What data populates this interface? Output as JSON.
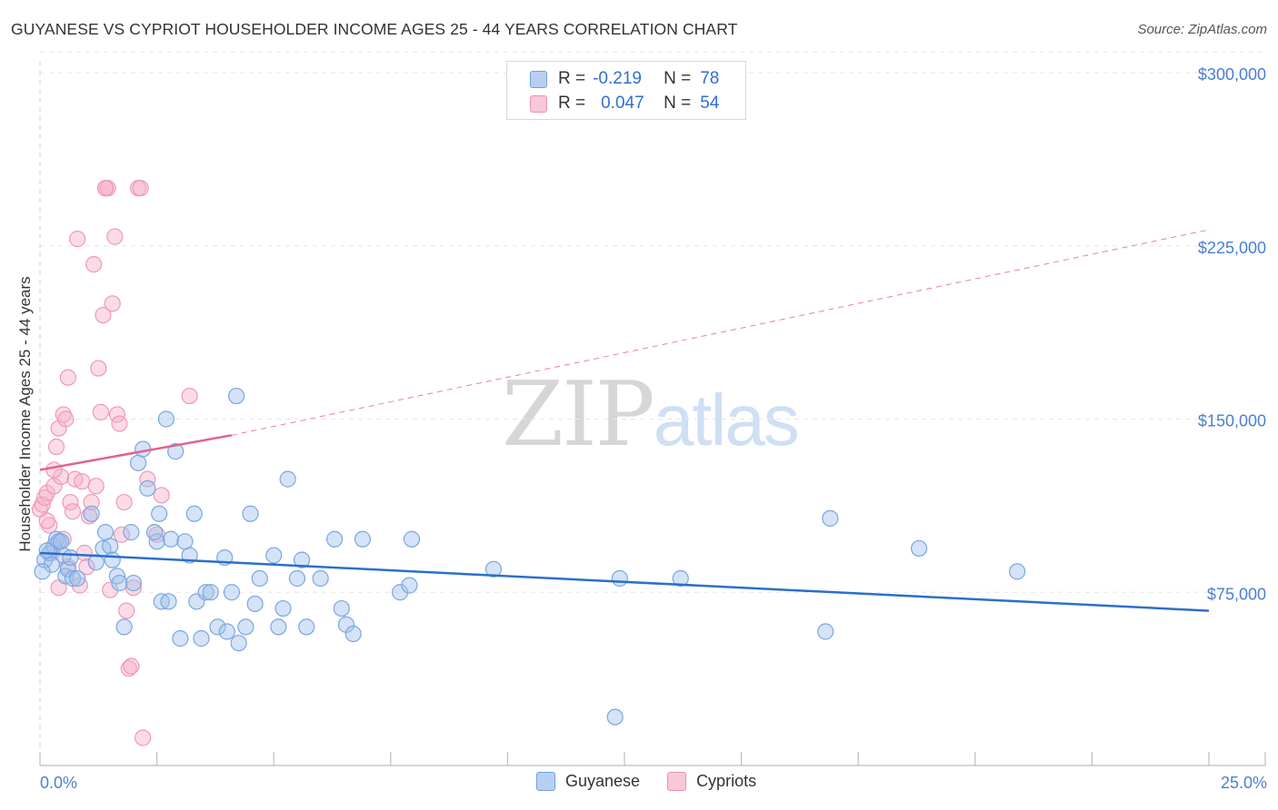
{
  "header": {
    "title": "GUYANESE VS CYPRIOT HOUSEHOLDER INCOME AGES 25 - 44 YEARS CORRELATION CHART",
    "source": "Source: ZipAtlas.com"
  },
  "watermark": {
    "zip": "ZIP",
    "atlas": "atlas"
  },
  "legend": {
    "rows": [
      {
        "r_label": "R =",
        "r_value": "-0.219",
        "n_label": "N =",
        "n_value": "78",
        "color": "#6fa0e0",
        "fill": "#b7d0f2"
      },
      {
        "r_label": "R =",
        "r_value": "0.047",
        "n_label": "N =",
        "n_value": "54",
        "color": "#ee8fb0",
        "fill": "#f8c8d8"
      }
    ]
  },
  "bottom_legend": {
    "items": [
      "Guyanese",
      "Cypriots"
    ]
  },
  "colors": {
    "blue_point_fill": "rgba(160,192,236,0.45)",
    "blue_point_stroke": "#7aa6e2",
    "pink_point_fill": "rgba(246,178,200,0.45)",
    "pink_point_stroke": "#ef98b6",
    "blue_line": "#2a6fcc",
    "pink_line": "#e0628e",
    "axis_text": "#4a7fd1",
    "grid": "#e6e6e6"
  },
  "chart_data": {
    "type": "scatter",
    "title": "GUYANESE VS CYPRIOT HOUSEHOLDER INCOME AGES 25 - 44 YEARS CORRELATION CHART",
    "xlabel": "",
    "ylabel": "Householder Income Ages 25 - 44 years",
    "xlim": [
      0,
      25
    ],
    "ylim": [
      0,
      310000
    ],
    "x_tick_labels": [
      "0.0%",
      "25.0%"
    ],
    "y_ticks": [
      75000,
      150000,
      225000,
      300000
    ],
    "y_tick_labels": [
      "$75,000",
      "$150,000",
      "$225,000",
      "$300,000"
    ],
    "grid": true,
    "legend_position": "top-center",
    "series": [
      {
        "name": "Guyanese",
        "r": -0.219,
        "n": 78,
        "trend": {
          "x": [
            0,
            25
          ],
          "y": [
            92000,
            67000
          ],
          "style": "solid"
        },
        "points": [
          [
            0.1,
            89000
          ],
          [
            0.2,
            92000
          ],
          [
            0.3,
            95000
          ],
          [
            0.35,
            98000
          ],
          [
            0.4,
            97000
          ],
          [
            0.45,
            97000
          ],
          [
            0.5,
            91000
          ],
          [
            0.55,
            82000
          ],
          [
            0.6,
            85000
          ],
          [
            0.7,
            81000
          ],
          [
            0.8,
            81000
          ],
          [
            1.1,
            109000
          ],
          [
            1.4,
            101000
          ],
          [
            1.35,
            94000
          ],
          [
            1.5,
            95000
          ],
          [
            1.55,
            89000
          ],
          [
            1.65,
            82000
          ],
          [
            1.7,
            79000
          ],
          [
            1.8,
            60000
          ],
          [
            1.95,
            101000
          ],
          [
            2.0,
            79000
          ],
          [
            2.1,
            131000
          ],
          [
            2.2,
            137000
          ],
          [
            2.3,
            120000
          ],
          [
            2.5,
            97000
          ],
          [
            2.55,
            109000
          ],
          [
            2.6,
            71000
          ],
          [
            2.7,
            150000
          ],
          [
            2.75,
            71000
          ],
          [
            2.8,
            98000
          ],
          [
            2.9,
            136000
          ],
          [
            3.0,
            55000
          ],
          [
            3.1,
            97000
          ],
          [
            3.2,
            91000
          ],
          [
            3.3,
            109000
          ],
          [
            3.35,
            71000
          ],
          [
            3.45,
            55000
          ],
          [
            3.55,
            75000
          ],
          [
            3.65,
            75000
          ],
          [
            3.8,
            60000
          ],
          [
            3.95,
            90000
          ],
          [
            4.0,
            58000
          ],
          [
            4.1,
            75000
          ],
          [
            4.25,
            53000
          ],
          [
            4.4,
            60000
          ],
          [
            4.5,
            109000
          ],
          [
            4.6,
            70000
          ],
          [
            4.7,
            81000
          ],
          [
            5.0,
            91000
          ],
          [
            5.1,
            60000
          ],
          [
            5.2,
            68000
          ],
          [
            5.3,
            124000
          ],
          [
            5.5,
            81000
          ],
          [
            5.6,
            89000
          ],
          [
            5.7,
            60000
          ],
          [
            6.0,
            81000
          ],
          [
            6.3,
            98000
          ],
          [
            6.45,
            68000
          ],
          [
            6.55,
            61000
          ],
          [
            6.7,
            57000
          ],
          [
            6.9,
            98000
          ],
          [
            7.7,
            75000
          ],
          [
            7.9,
            78000
          ],
          [
            7.95,
            98000
          ],
          [
            9.7,
            85000
          ],
          [
            12.4,
            81000
          ],
          [
            12.3,
            21000
          ],
          [
            13.7,
            81000
          ],
          [
            16.8,
            58000
          ],
          [
            16.9,
            107000
          ],
          [
            18.8,
            94000
          ],
          [
            20.9,
            84000
          ],
          [
            0.15,
            93000
          ],
          [
            0.25,
            87000
          ],
          [
            0.05,
            84000
          ],
          [
            0.65,
            90000
          ],
          [
            4.2,
            160000
          ],
          [
            1.2,
            88000
          ],
          [
            2.45,
            101000
          ]
        ]
      },
      {
        "name": "Cypriots",
        "r": 0.047,
        "n": 54,
        "trend": {
          "x": [
            0,
            4.1,
            25
          ],
          "y": [
            128000,
            143000,
            232000
          ],
          "style": "solid-then-dashed"
        },
        "points": [
          [
            0.0,
            111000
          ],
          [
            0.05,
            113000
          ],
          [
            0.1,
            116000
          ],
          [
            0.15,
            118000
          ],
          [
            0.2,
            104000
          ],
          [
            0.25,
            92000
          ],
          [
            0.3,
            121000
          ],
          [
            0.35,
            138000
          ],
          [
            0.4,
            146000
          ],
          [
            0.45,
            125000
          ],
          [
            0.5,
            152000
          ],
          [
            0.55,
            150000
          ],
          [
            0.6,
            168000
          ],
          [
            0.65,
            114000
          ],
          [
            0.7,
            110000
          ],
          [
            0.75,
            124000
          ],
          [
            0.8,
            228000
          ],
          [
            0.85,
            78000
          ],
          [
            0.9,
            123000
          ],
          [
            0.95,
            92000
          ],
          [
            1.0,
            86000
          ],
          [
            1.05,
            108000
          ],
          [
            1.1,
            114000
          ],
          [
            1.15,
            217000
          ],
          [
            1.2,
            121000
          ],
          [
            1.25,
            172000
          ],
          [
            1.3,
            153000
          ],
          [
            1.35,
            195000
          ],
          [
            1.4,
            250000
          ],
          [
            1.45,
            250000
          ],
          [
            1.5,
            76000
          ],
          [
            1.55,
            200000
          ],
          [
            1.6,
            229000
          ],
          [
            1.65,
            152000
          ],
          [
            1.7,
            148000
          ],
          [
            1.75,
            100000
          ],
          [
            1.8,
            114000
          ],
          [
            1.85,
            67000
          ],
          [
            1.9,
            42000
          ],
          [
            1.95,
            43000
          ],
          [
            2.0,
            77000
          ],
          [
            2.1,
            250000
          ],
          [
            2.15,
            250000
          ],
          [
            2.2,
            12000
          ],
          [
            2.3,
            124000
          ],
          [
            2.5,
            100000
          ],
          [
            2.6,
            117000
          ],
          [
            3.2,
            160000
          ],
          [
            0.4,
            77000
          ],
          [
            0.6,
            86000
          ],
          [
            0.3,
            128000
          ],
          [
            0.15,
            106000
          ],
          [
            0.5,
            98000
          ],
          [
            1.4,
            250000
          ]
        ]
      }
    ]
  }
}
